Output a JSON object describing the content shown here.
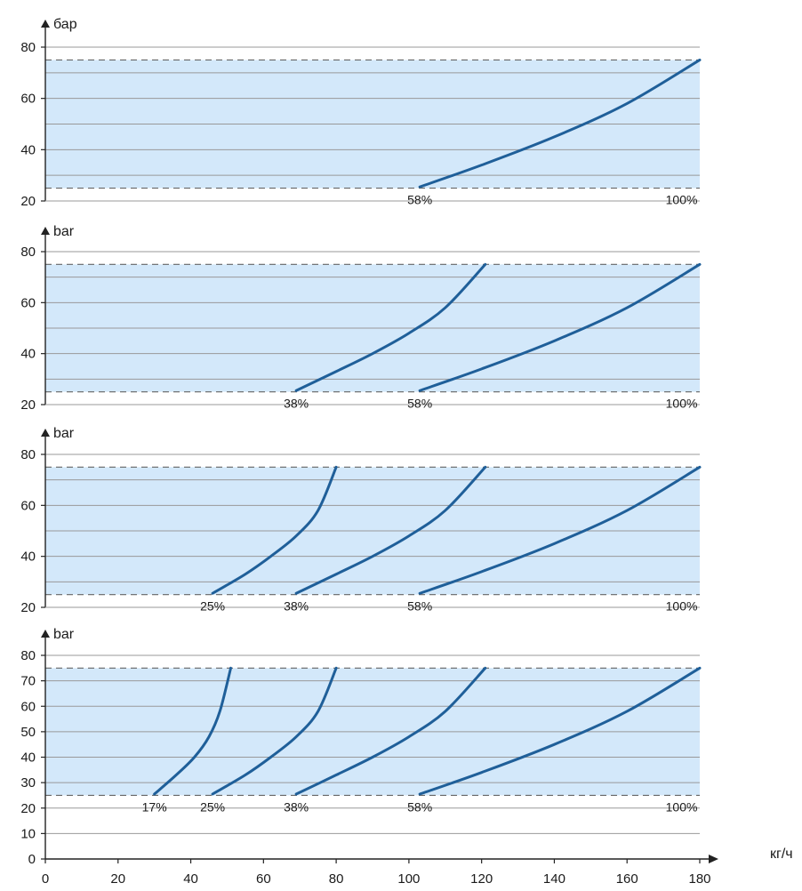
{
  "chart_data": [
    {
      "type": "line",
      "ylabel": "бар",
      "xlim": [
        0,
        180
      ],
      "ylim": [
        20,
        80
      ],
      "yticks": [
        20,
        40,
        60,
        80
      ],
      "shaded_band": [
        25,
        75
      ],
      "grid": true,
      "series": [
        {
          "name": "58%",
          "x": [
            103,
            120,
            140,
            160,
            180
          ],
          "y": [
            25.5,
            34,
            45,
            58,
            75
          ]
        }
      ],
      "labels": [
        {
          "text": "58%",
          "x": 103
        },
        {
          "text": "100%",
          "x": 175
        }
      ]
    },
    {
      "type": "line",
      "ylabel": "bar",
      "xlim": [
        0,
        180
      ],
      "ylim": [
        20,
        80
      ],
      "yticks": [
        20,
        40,
        60,
        80
      ],
      "shaded_band": [
        25,
        75
      ],
      "grid": true,
      "series": [
        {
          "name": "38%",
          "x": [
            69,
            80,
            90,
            100,
            110,
            121
          ],
          "y": [
            25.5,
            33,
            40,
            48,
            58,
            75
          ]
        },
        {
          "name": "58%",
          "x": [
            103,
            120,
            140,
            160,
            180
          ],
          "y": [
            25.5,
            34,
            45,
            58,
            75
          ]
        }
      ],
      "labels": [
        {
          "text": "38%",
          "x": 69
        },
        {
          "text": "58%",
          "x": 103
        },
        {
          "text": "100%",
          "x": 175
        }
      ]
    },
    {
      "type": "line",
      "ylabel": "bar",
      "xlim": [
        0,
        180
      ],
      "ylim": [
        20,
        80
      ],
      "yticks": [
        20,
        40,
        60,
        80
      ],
      "shaded_band": [
        25,
        75
      ],
      "grid": true,
      "series": [
        {
          "name": "25%",
          "x": [
            46,
            55,
            62,
            69,
            75,
            80
          ],
          "y": [
            25.5,
            33,
            40,
            48,
            58,
            75
          ]
        },
        {
          "name": "38%",
          "x": [
            69,
            80,
            90,
            100,
            110,
            121
          ],
          "y": [
            25.5,
            33,
            40,
            48,
            58,
            75
          ]
        },
        {
          "name": "58%",
          "x": [
            103,
            120,
            140,
            160,
            180
          ],
          "y": [
            25.5,
            34,
            45,
            58,
            75
          ]
        }
      ],
      "labels": [
        {
          "text": "25%",
          "x": 46
        },
        {
          "text": "38%",
          "x": 69
        },
        {
          "text": "58%",
          "x": 103
        },
        {
          "text": "100%",
          "x": 175
        }
      ]
    },
    {
      "type": "line",
      "ylabel": "bar",
      "xlabel": "кг/ч",
      "xlim": [
        0,
        180
      ],
      "ylim": [
        0,
        80
      ],
      "yticks": [
        0,
        10,
        20,
        30,
        40,
        50,
        60,
        70,
        80
      ],
      "xticks": [
        0,
        20,
        40,
        60,
        80,
        100,
        120,
        140,
        160,
        180
      ],
      "shaded_band": [
        25,
        75
      ],
      "grid": true,
      "series": [
        {
          "name": "17%",
          "x": [
            30,
            36,
            41,
            45,
            48,
            51
          ],
          "y": [
            25.5,
            33,
            40,
            48,
            58,
            75
          ]
        },
        {
          "name": "25%",
          "x": [
            46,
            55,
            62,
            69,
            75,
            80
          ],
          "y": [
            25.5,
            33,
            40,
            48,
            58,
            75
          ]
        },
        {
          "name": "38%",
          "x": [
            69,
            80,
            90,
            100,
            110,
            121
          ],
          "y": [
            25.5,
            33,
            40,
            48,
            58,
            75
          ]
        },
        {
          "name": "58%",
          "x": [
            103,
            120,
            140,
            160,
            180
          ],
          "y": [
            25.5,
            34,
            45,
            58,
            75
          ]
        }
      ],
      "labels": [
        {
          "text": "17%",
          "x": 30
        },
        {
          "text": "25%",
          "x": 46
        },
        {
          "text": "38%",
          "x": 69
        },
        {
          "text": "58%",
          "x": 103
        },
        {
          "text": "100%",
          "x": 175
        }
      ]
    }
  ],
  "colors": {
    "curve": "#1f5f99",
    "band": "#d3e8fa",
    "grid": "#999999",
    "dashed": "#666666",
    "axis": "#222222",
    "text": "#1a1a1a"
  }
}
